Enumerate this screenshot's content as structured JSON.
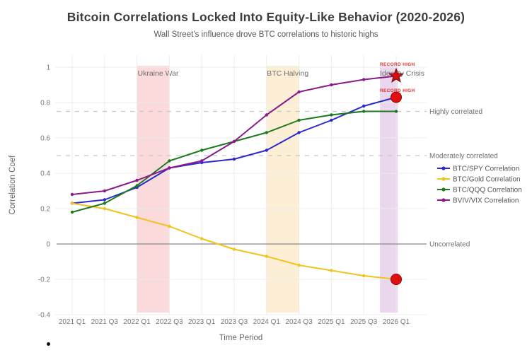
{
  "page": {
    "bullet_glyph": "•"
  },
  "chart_data": {
    "type": "line",
    "title": "Bitcoin Correlations Locked Into Equity-Like Behavior (2020-2026)",
    "subtitle": "Wall Street’s influence drove BTC correlations to historic highs",
    "xlabel": "Time Period",
    "ylabel": "Correlation Coef",
    "ylim": [
      -0.4,
      1.0
    ],
    "yticks": [
      1,
      0.8,
      0.6,
      0.4,
      0.2,
      0,
      -0.2,
      -0.4
    ],
    "ytick_labels": [
      "1",
      "0.8",
      "0.6",
      "0.4",
      "0.2",
      "0",
      "-0.2",
      "-0.4"
    ],
    "grid": true,
    "legend_position": "right",
    "categories": [
      "2021 Q1",
      "2021 Q3",
      "2022 Q1",
      "2022 Q3",
      "2023 Q1",
      "2023 Q3",
      "2024 Q1",
      "2024 Q3",
      "2025 Q1",
      "2025 Q3",
      "2026 Q1"
    ],
    "series": [
      {
        "name": "BTC/SPY Correlation",
        "color": "#2a2acc",
        "values": [
          0.23,
          0.25,
          0.32,
          0.43,
          0.46,
          0.48,
          0.53,
          0.63,
          0.7,
          0.78,
          0.83
        ]
      },
      {
        "name": "BTC/Gold Correlation",
        "color": "#f2c31d",
        "values": [
          0.23,
          0.2,
          0.15,
          0.1,
          0.03,
          -0.03,
          -0.07,
          -0.12,
          -0.15,
          -0.18,
          -0.2
        ]
      },
      {
        "name": "BTC/QQQ Correlation",
        "color": "#1d7a1d",
        "values": [
          0.18,
          0.23,
          0.33,
          0.47,
          0.53,
          0.58,
          0.63,
          0.7,
          0.73,
          0.75,
          0.75
        ]
      },
      {
        "name": "BVIV/VIX Correlation",
        "color": "#8a1a8a",
        "values": [
          0.28,
          0.3,
          0.36,
          0.43,
          0.47,
          0.58,
          0.73,
          0.86,
          0.9,
          0.93,
          0.95
        ]
      }
    ],
    "reference_lines": [
      {
        "value": 0.75,
        "label": "Highly correlated",
        "style": "dashed",
        "color": "#c6c6c6"
      },
      {
        "value": 0.5,
        "label": "Moderately correlated",
        "style": "dashed",
        "color": "#c6c6c6"
      },
      {
        "value": 0,
        "label": "Uncorrelated",
        "style": "solid",
        "color": "#8a8a8a"
      }
    ],
    "bands": [
      {
        "label": "Ukraine War",
        "x0": 2,
        "x1": 3,
        "color": "#fadada"
      },
      {
        "label": "BTC Halving",
        "x0": 6,
        "x1": 7,
        "color": "#fdeed6"
      },
      {
        "label": "Identity Crisis",
        "x0": 9.5,
        "x1": 10.05,
        "color": "#ead7ee"
      }
    ],
    "annotations": [
      {
        "text": "RECORD HIGH",
        "series": "BVIV/VIX Correlation",
        "x": 10,
        "y": 0.95,
        "marker": "star",
        "text_color": "#e03131",
        "marker_color": "#d40f0f"
      },
      {
        "text": "RECORD HIGH",
        "series": "BTC/SPY Correlation",
        "x": 10,
        "y": 0.83,
        "marker": "circle",
        "text_color": "#e03131",
        "marker_color": "#e01010"
      },
      {
        "text": "",
        "series": "BTC/Gold Correlation",
        "x": 10,
        "y": -0.2,
        "marker": "circle",
        "text_color": "#e03131",
        "marker_color": "#e01010"
      }
    ],
    "colors": {
      "grid": "#ececec",
      "zero_line": "#8a8a8a",
      "tick_text": "#777777",
      "axis_label_text": "#666666",
      "band_label_text": "#6e6e6e",
      "ref_label_text": "#6e6e6e",
      "legend_text": "#555555"
    }
  }
}
